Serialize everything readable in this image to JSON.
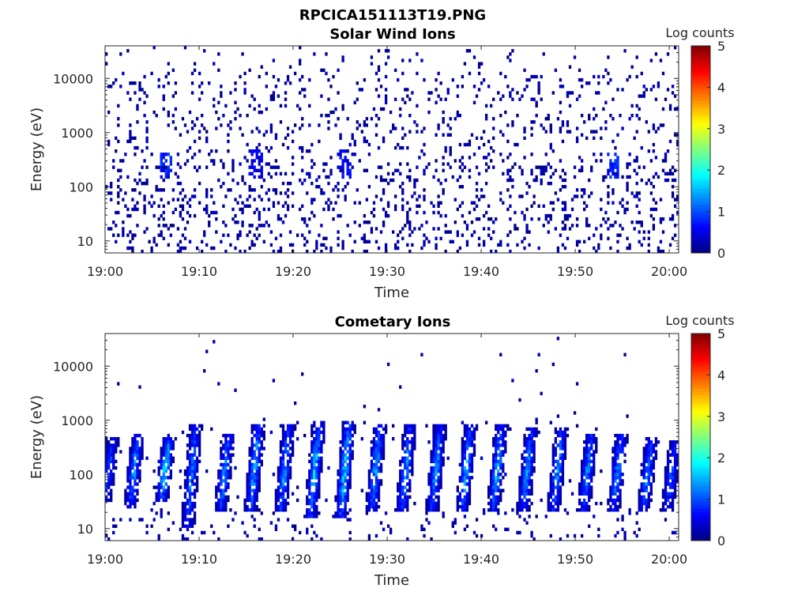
{
  "figure": {
    "title": "RPCICA151113T19.PNG"
  },
  "chart_data": [
    {
      "type": "heatmap",
      "title": "Solar Wind Ions",
      "xlabel": "Time",
      "ylabel": "Energy (eV)",
      "xlim": [
        "19:00",
        "20:01"
      ],
      "ylim": [
        6,
        40000
      ],
      "yscale": "log",
      "x_ticks": [
        "19:00",
        "19:10",
        "19:20",
        "19:30",
        "19:40",
        "19:50",
        "20:00"
      ],
      "y_ticks": [
        "10",
        "100",
        "1000",
        "10000"
      ],
      "colorbar": {
        "label": "Log counts",
        "range": [
          0,
          5
        ],
        "ticks": [
          "0",
          "1",
          "2",
          "3",
          "4",
          "5"
        ],
        "colormap": "jet"
      },
      "description_of_values": "sparse single-count pixels (log counts ~0-0.5) scattered across 10 eV - 30 keV over the full hour, denser toward lower energies",
      "intense_bands": [
        {
          "time_min": 6.5,
          "energy_range": [
            150,
            400
          ],
          "log_counts": 1.0
        },
        {
          "time_min": 16.0,
          "energy_range": [
            150,
            500
          ],
          "log_counts": 0.7
        },
        {
          "time_min": 25.5,
          "energy_range": [
            150,
            500
          ],
          "log_counts": 0.8
        },
        {
          "time_min": 54.0,
          "energy_range": [
            150,
            400
          ],
          "log_counts": 1.0
        }
      ],
      "grid": false
    },
    {
      "type": "heatmap",
      "title": "Cometary Ions",
      "xlabel": "Time",
      "ylabel": "Energy (eV)",
      "xlim": [
        "19:00",
        "20:01"
      ],
      "ylim": [
        6,
        40000
      ],
      "yscale": "log",
      "x_ticks": [
        "19:00",
        "19:10",
        "19:20",
        "19:30",
        "19:40",
        "19:50",
        "20:00"
      ],
      "y_ticks": [
        "10",
        "100",
        "1000",
        "10000"
      ],
      "colorbar": {
        "label": "Log counts",
        "range": [
          0,
          5
        ],
        "ticks": [
          "0",
          "1",
          "2",
          "3",
          "4",
          "5"
        ],
        "colormap": "jet"
      },
      "description_of_values": "periodic slanted bursts of ions (roughly every 3.2 min) spanning ~20 eV to ~1 keV, peak log counts ~2",
      "bursts": [
        {
          "time_min": 0.5,
          "energy_range": [
            30,
            500
          ],
          "peak_log_counts": 1.3
        },
        {
          "time_min": 3.2,
          "energy_range": [
            25,
            600
          ],
          "peak_log_counts": 1.8
        },
        {
          "time_min": 6.5,
          "energy_range": [
            30,
            500
          ],
          "peak_log_counts": 2.2
        },
        {
          "time_min": 9.3,
          "energy_range": [
            10,
            900
          ],
          "peak_log_counts": 1.6
        },
        {
          "time_min": 12.8,
          "energy_range": [
            20,
            600
          ],
          "peak_log_counts": 1.8
        },
        {
          "time_min": 16.0,
          "energy_range": [
            20,
            900
          ],
          "peak_log_counts": 2.0
        },
        {
          "time_min": 19.2,
          "energy_range": [
            20,
            800
          ],
          "peak_log_counts": 1.8
        },
        {
          "time_min": 22.4,
          "energy_range": [
            15,
            1000
          ],
          "peak_log_counts": 2.0
        },
        {
          "time_min": 25.6,
          "energy_range": [
            15,
            1000
          ],
          "peak_log_counts": 2.2
        },
        {
          "time_min": 28.9,
          "energy_range": [
            20,
            900
          ],
          "peak_log_counts": 1.9
        },
        {
          "time_min": 32.1,
          "energy_range": [
            20,
            800
          ],
          "peak_log_counts": 1.8
        },
        {
          "time_min": 35.3,
          "energy_range": [
            20,
            800
          ],
          "peak_log_counts": 1.8
        },
        {
          "time_min": 38.5,
          "energy_range": [
            20,
            800
          ],
          "peak_log_counts": 2.0
        },
        {
          "time_min": 41.8,
          "energy_range": [
            20,
            800
          ],
          "peak_log_counts": 1.9
        },
        {
          "time_min": 45.0,
          "energy_range": [
            20,
            700
          ],
          "peak_log_counts": 1.8
        },
        {
          "time_min": 48.2,
          "energy_range": [
            20,
            700
          ],
          "peak_log_counts": 1.8
        },
        {
          "time_min": 51.4,
          "energy_range": [
            20,
            600
          ],
          "peak_log_counts": 1.7
        },
        {
          "time_min": 54.6,
          "energy_range": [
            20,
            600
          ],
          "peak_log_counts": 1.7
        },
        {
          "time_min": 57.8,
          "energy_range": [
            20,
            500
          ],
          "peak_log_counts": 1.6
        },
        {
          "time_min": 60.3,
          "energy_range": [
            20,
            400
          ],
          "peak_log_counts": 1.4
        }
      ],
      "grid": false
    }
  ]
}
